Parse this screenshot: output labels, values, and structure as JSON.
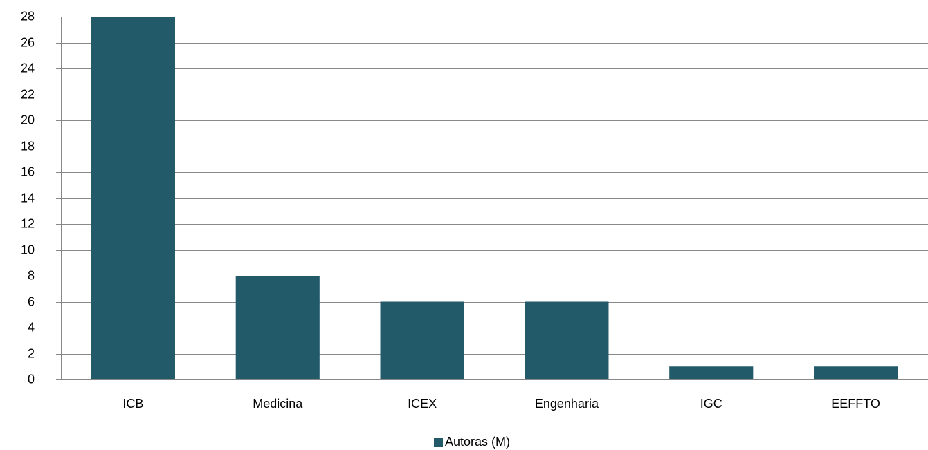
{
  "chart_data": {
    "type": "bar",
    "categories": [
      "ICB",
      "Medicina",
      "ICEX",
      "Engenharia",
      "IGC",
      "EEFFTO"
    ],
    "series": [
      {
        "name": "Autoras (M)",
        "color": "#225a6a",
        "values": [
          28,
          8,
          6,
          6,
          1,
          1
        ]
      }
    ],
    "ylim": [
      0,
      28
    ],
    "yticks": [
      0,
      2,
      4,
      6,
      8,
      10,
      12,
      14,
      16,
      18,
      20,
      22,
      24,
      26,
      28
    ],
    "grid": true,
    "legend": "bottom"
  }
}
